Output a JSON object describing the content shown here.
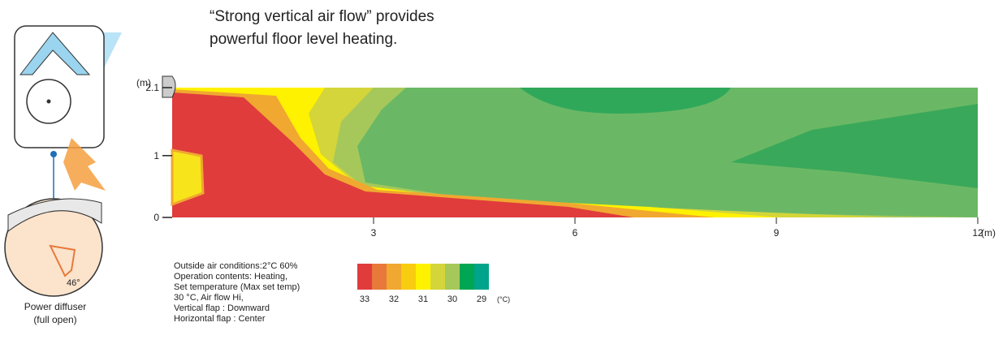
{
  "header": {
    "lines": [
      "“Strong vertical air flow” provides",
      "powerful floor level heating."
    ]
  },
  "plot": {
    "y_unit": "(m)",
    "x_unit": "(m)",
    "xlim": [
      0,
      12
    ],
    "xticks": [
      3,
      6,
      9,
      12
    ],
    "ylim": [
      0,
      2.1
    ],
    "yticks": [
      0,
      1,
      2.1
    ]
  },
  "conditions": [
    "Outside air conditions:2°C 60%",
    "Operation contents: Heating,",
    "Set temperature (Max set temp)",
    "30 °C, Air flow Hi,",
    "Vertical flap :  Downward",
    "Horizontal flap :  Center"
  ],
  "legend": {
    "colors": [
      "#e03c3c",
      "#e8793a",
      "#f0a830",
      "#f8cc10",
      "#fff200",
      "#d4d53a",
      "#a6c85a",
      "#00a651",
      "#00a48a"
    ],
    "labels": [
      "33",
      "32",
      "31",
      "30",
      "29"
    ],
    "unit": "(°C)"
  },
  "unit": {
    "angle": "46°",
    "caption": [
      "Power diffuser",
      "(full open)"
    ]
  }
}
